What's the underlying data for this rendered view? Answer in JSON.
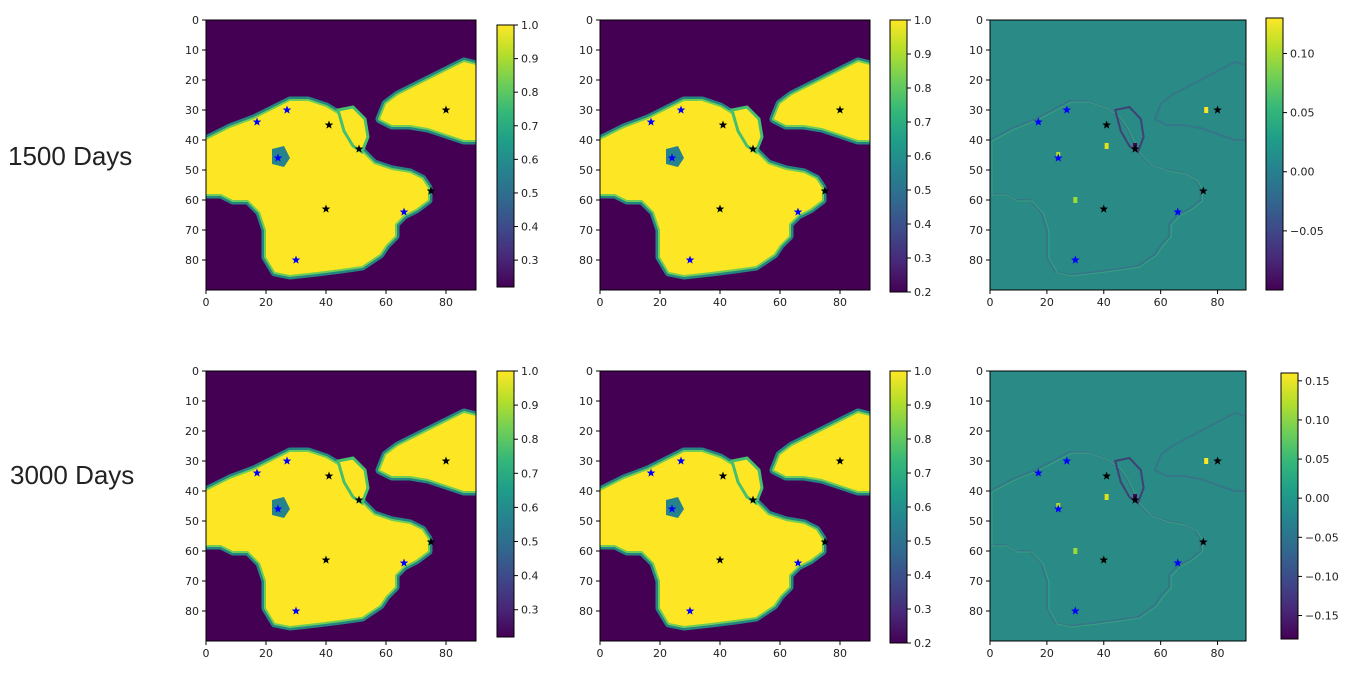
{
  "row_labels": [
    "1500 Days",
    "3000 Days"
  ],
  "colors": {
    "viridis_low": "#440154",
    "viridis_mid": "#21918c",
    "viridis_high": "#fde725",
    "star_blue": "#0000ff",
    "star_black": "#000000"
  },
  "chart_data": [
    {
      "type": "heatmap",
      "row": "1500 Days",
      "column": 1,
      "field": "saturation_a",
      "xlim": [
        0,
        90
      ],
      "ylim": [
        90,
        0
      ],
      "y_inverted": true,
      "xticks": [
        0,
        20,
        40,
        60,
        80
      ],
      "yticks": [
        0,
        10,
        20,
        30,
        40,
        50,
        60,
        70,
        80
      ],
      "colorbar": {
        "min": 0.22,
        "max": 1.0,
        "ticks": [
          0.3,
          0.4,
          0.5,
          0.6,
          0.7,
          0.8,
          0.9,
          1.0
        ],
        "tick_labels": [
          "0.3",
          "0.4",
          "0.5",
          "0.6",
          "0.7",
          "0.8",
          "0.9",
          "1.0"
        ]
      },
      "markers_blue": [
        [
          17,
          34
        ],
        [
          27,
          30
        ],
        [
          24,
          46
        ],
        [
          30,
          80
        ],
        [
          66,
          64
        ]
      ],
      "markers_black": [
        [
          41,
          35
        ],
        [
          51,
          43
        ],
        [
          80,
          30
        ],
        [
          40,
          63
        ],
        [
          75,
          57
        ]
      ],
      "grid": false
    },
    {
      "type": "heatmap",
      "row": "1500 Days",
      "column": 2,
      "field": "saturation_b",
      "xlim": [
        0,
        90
      ],
      "ylim": [
        90,
        0
      ],
      "y_inverted": true,
      "xticks": [
        0,
        20,
        40,
        60,
        80
      ],
      "yticks": [
        0,
        10,
        20,
        30,
        40,
        50,
        60,
        70,
        80
      ],
      "colorbar": {
        "min": 0.2,
        "max": 1.0,
        "ticks": [
          0.2,
          0.3,
          0.4,
          0.5,
          0.6,
          0.7,
          0.8,
          0.9,
          1.0
        ],
        "tick_labels": [
          "0.2",
          "0.3",
          "0.4",
          "0.5",
          "0.6",
          "0.7",
          "0.8",
          "0.9",
          "1.0"
        ]
      },
      "markers_blue": [
        [
          17,
          34
        ],
        [
          27,
          30
        ],
        [
          24,
          46
        ],
        [
          30,
          80
        ],
        [
          66,
          64
        ]
      ],
      "markers_black": [
        [
          41,
          35
        ],
        [
          51,
          43
        ],
        [
          80,
          30
        ],
        [
          40,
          63
        ],
        [
          75,
          57
        ]
      ],
      "grid": false
    },
    {
      "type": "heatmap",
      "row": "1500 Days",
      "column": 3,
      "field": "difference",
      "xlim": [
        0,
        90
      ],
      "ylim": [
        90,
        0
      ],
      "y_inverted": true,
      "xticks": [
        0,
        20,
        40,
        60,
        80
      ],
      "yticks": [
        0,
        10,
        20,
        30,
        40,
        50,
        60,
        70,
        80
      ],
      "colorbar": {
        "min": -0.1,
        "max": 0.13,
        "ticks": [
          -0.05,
          0.0,
          0.05,
          0.1
        ],
        "tick_labels": [
          "−0.05",
          "0.00",
          "0.05",
          "0.10"
        ]
      },
      "markers_blue": [
        [
          17,
          34
        ],
        [
          27,
          30
        ],
        [
          24,
          46
        ],
        [
          30,
          80
        ],
        [
          66,
          64
        ]
      ],
      "markers_black": [
        [
          41,
          35
        ],
        [
          51,
          43
        ],
        [
          80,
          30
        ],
        [
          40,
          63
        ],
        [
          75,
          57
        ]
      ],
      "grid": false
    },
    {
      "type": "heatmap",
      "row": "3000 Days",
      "column": 1,
      "field": "saturation_a",
      "xlim": [
        0,
        90
      ],
      "ylim": [
        90,
        0
      ],
      "y_inverted": true,
      "xticks": [
        0,
        20,
        40,
        60,
        80
      ],
      "yticks": [
        0,
        10,
        20,
        30,
        40,
        50,
        60,
        70,
        80
      ],
      "colorbar": {
        "min": 0.22,
        "max": 1.0,
        "ticks": [
          0.3,
          0.4,
          0.5,
          0.6,
          0.7,
          0.8,
          0.9,
          1.0
        ],
        "tick_labels": [
          "0.3",
          "0.4",
          "0.5",
          "0.6",
          "0.7",
          "0.8",
          "0.9",
          "1.0"
        ]
      },
      "markers_blue": [
        [
          17,
          34
        ],
        [
          27,
          30
        ],
        [
          24,
          46
        ],
        [
          30,
          80
        ],
        [
          66,
          64
        ]
      ],
      "markers_black": [
        [
          41,
          35
        ],
        [
          51,
          43
        ],
        [
          80,
          30
        ],
        [
          40,
          63
        ],
        [
          75,
          57
        ]
      ],
      "grid": false
    },
    {
      "type": "heatmap",
      "row": "3000 Days",
      "column": 2,
      "field": "saturation_b",
      "xlim": [
        0,
        90
      ],
      "ylim": [
        90,
        0
      ],
      "y_inverted": true,
      "xticks": [
        0,
        20,
        40,
        60,
        80
      ],
      "yticks": [
        0,
        10,
        20,
        30,
        40,
        50,
        60,
        70,
        80
      ],
      "colorbar": {
        "min": 0.2,
        "max": 1.0,
        "ticks": [
          0.2,
          0.3,
          0.4,
          0.5,
          0.6,
          0.7,
          0.8,
          0.9,
          1.0
        ],
        "tick_labels": [
          "0.2",
          "0.3",
          "0.4",
          "0.5",
          "0.6",
          "0.7",
          "0.8",
          "0.9",
          "1.0"
        ]
      },
      "markers_blue": [
        [
          17,
          34
        ],
        [
          27,
          30
        ],
        [
          24,
          46
        ],
        [
          30,
          80
        ],
        [
          66,
          64
        ]
      ],
      "markers_black": [
        [
          41,
          35
        ],
        [
          51,
          43
        ],
        [
          80,
          30
        ],
        [
          40,
          63
        ],
        [
          75,
          57
        ]
      ],
      "grid": false
    },
    {
      "type": "heatmap",
      "row": "3000 Days",
      "column": 3,
      "field": "difference",
      "xlim": [
        0,
        90
      ],
      "ylim": [
        90,
        0
      ],
      "y_inverted": true,
      "xticks": [
        0,
        20,
        40,
        60,
        80
      ],
      "yticks": [
        0,
        10,
        20,
        30,
        40,
        50,
        60,
        70,
        80
      ],
      "colorbar": {
        "min": -0.18,
        "max": 0.16,
        "ticks": [
          -0.15,
          -0.1,
          -0.05,
          0.0,
          0.05,
          0.1,
          0.15
        ],
        "tick_labels": [
          "−0.15",
          "−0.10",
          "−0.05",
          "0.00",
          "0.05",
          "0.10",
          "0.15"
        ]
      },
      "markers_blue": [
        [
          17,
          34
        ],
        [
          27,
          30
        ],
        [
          24,
          46
        ],
        [
          30,
          80
        ],
        [
          66,
          64
        ]
      ],
      "markers_black": [
        [
          41,
          35
        ],
        [
          51,
          43
        ],
        [
          80,
          30
        ],
        [
          40,
          63
        ],
        [
          75,
          57
        ]
      ],
      "grid": false
    }
  ]
}
